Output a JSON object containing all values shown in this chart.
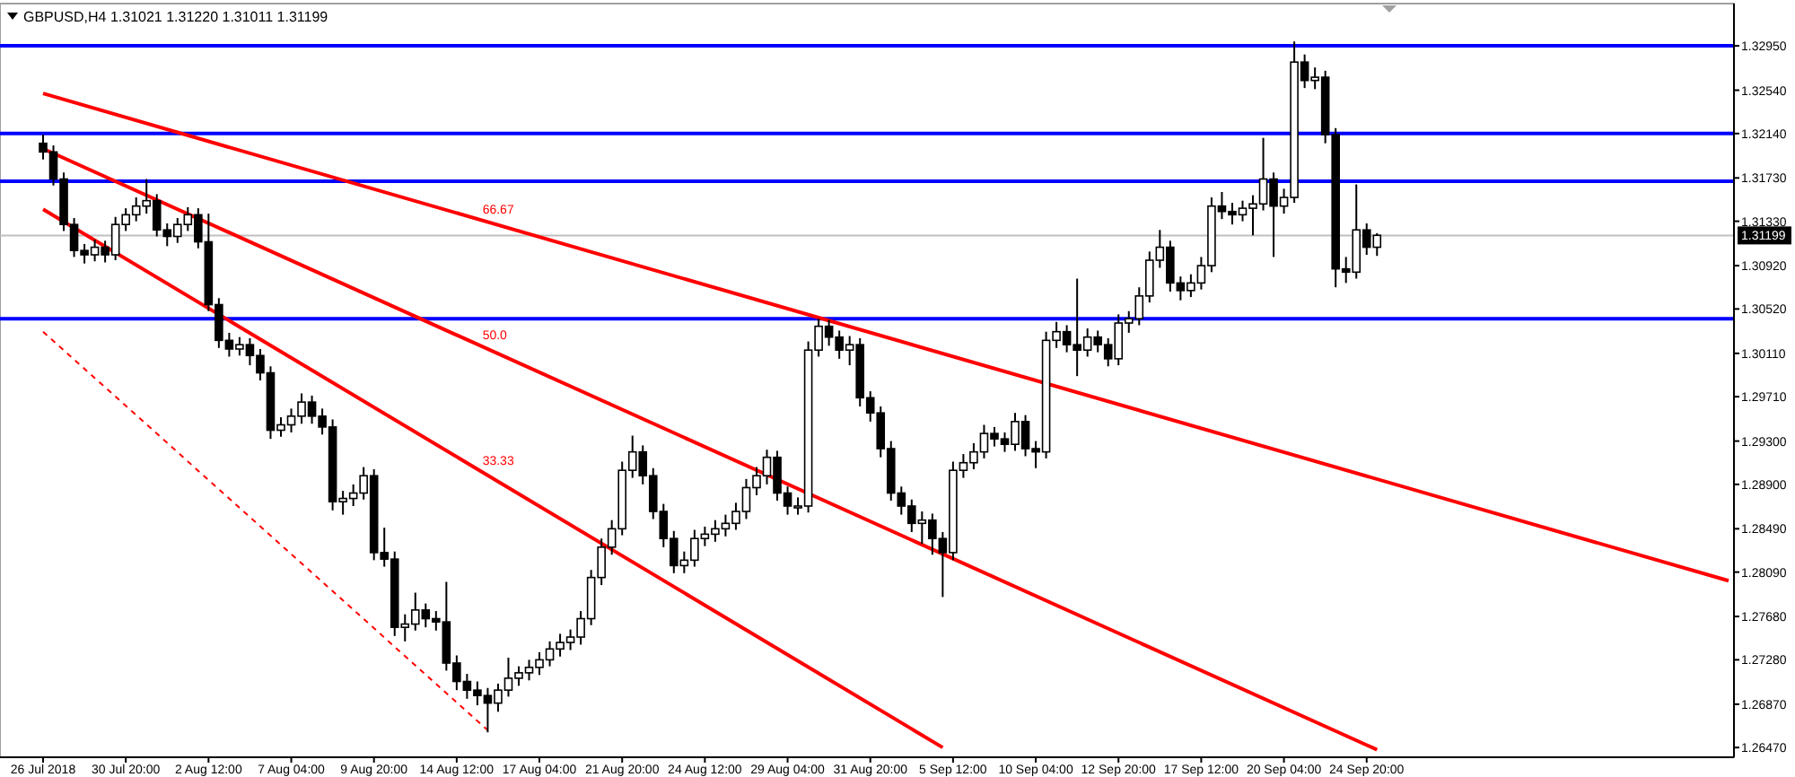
{
  "chart_data": {
    "type": "candlestick",
    "title": "GBPUSD,H4 1.31021 1.31220 1.31011 1.31199",
    "categories": [
      "26 Jul 2018",
      null,
      null,
      null,
      null,
      null,
      null,
      null,
      "30 Jul 20:00",
      null,
      null,
      null,
      null,
      null,
      null,
      null,
      "2 Aug 12:00",
      null,
      null,
      null,
      null,
      null,
      null,
      null,
      "7 Aug 04:00",
      null,
      null,
      null,
      null,
      null,
      null,
      null,
      "9 Aug 20:00",
      null,
      null,
      null,
      null,
      null,
      null,
      null,
      "14 Aug 12:00",
      null,
      null,
      null,
      null,
      null,
      null,
      null,
      "17 Aug 04:00",
      null,
      null,
      null,
      null,
      null,
      null,
      null,
      "21 Aug 20:00",
      null,
      null,
      null,
      null,
      null,
      null,
      null,
      "24 Aug 12:00",
      null,
      null,
      null,
      null,
      null,
      null,
      null,
      "29 Aug 04:00",
      null,
      null,
      null,
      null,
      null,
      null,
      null,
      "31 Aug 20:00",
      null,
      null,
      null,
      null,
      null,
      null,
      null,
      "5 Sep 12:00",
      null,
      null,
      null,
      null,
      null,
      null,
      null,
      "10 Sep 04:00",
      null,
      null,
      null,
      null,
      null,
      null,
      null,
      "12 Sep 20:00",
      null,
      null,
      null,
      null,
      null,
      null,
      null,
      "17 Sep 12:00",
      null,
      null,
      null,
      null,
      null,
      null,
      null,
      "20 Sep 04:00",
      null,
      null,
      null,
      null,
      null,
      null,
      null,
      "24 Sep 20:00",
      null,
      null,
      null,
      null,
      null,
      null,
      null,
      null,
      null,
      null,
      null,
      null,
      null,
      null,
      null,
      null,
      null,
      null,
      null,
      null,
      null,
      null,
      null,
      null,
      null,
      null,
      null,
      null,
      null,
      null,
      null,
      null,
      null,
      null,
      null
    ],
    "ohlc": [
      [
        1.3205,
        1.3213,
        1.319,
        1.3197
      ],
      [
        1.3197,
        1.3203,
        1.3166,
        1.3172
      ],
      [
        1.3172,
        1.3178,
        1.3124,
        1.313
      ],
      [
        1.313,
        1.3136,
        1.31,
        1.3106
      ],
      [
        1.3106,
        1.3112,
        1.3094,
        1.3102
      ],
      [
        1.3102,
        1.3116,
        1.3096,
        1.3109
      ],
      [
        1.3109,
        1.3115,
        1.3095,
        1.3102
      ],
      [
        1.3102,
        1.3137,
        1.3097,
        1.313
      ],
      [
        1.313,
        1.3145,
        1.3124,
        1.3139
      ],
      [
        1.3139,
        1.3155,
        1.3133,
        1.3147
      ],
      [
        1.3147,
        1.3172,
        1.314,
        1.3152
      ],
      [
        1.3152,
        1.3158,
        1.3119,
        1.3125
      ],
      [
        1.3125,
        1.3131,
        1.311,
        1.3119
      ],
      [
        1.3119,
        1.3136,
        1.3113,
        1.313
      ],
      [
        1.313,
        1.3146,
        1.3124,
        1.3139
      ],
      [
        1.3139,
        1.3145,
        1.3108,
        1.3114
      ],
      [
        1.3114,
        1.314,
        1.305,
        1.3056
      ],
      [
        1.3056,
        1.3062,
        1.3016,
        1.3023
      ],
      [
        1.3023,
        1.303,
        1.3008,
        1.3015
      ],
      [
        1.3015,
        1.3026,
        1.3009,
        1.3019
      ],
      [
        1.3019,
        1.3025,
        1.3,
        1.3009
      ],
      [
        1.3009,
        1.3015,
        1.2986,
        1.2993
      ],
      [
        1.2993,
        1.2999,
        1.2932,
        1.294
      ],
      [
        1.294,
        1.2952,
        1.2934,
        1.2945
      ],
      [
        1.2945,
        1.296,
        1.2938,
        1.2953
      ],
      [
        1.2953,
        1.2974,
        1.2946,
        1.2966
      ],
      [
        1.2966,
        1.2972,
        1.2946,
        1.2953
      ],
      [
        1.2953,
        1.296,
        1.2936,
        1.2943
      ],
      [
        1.2943,
        1.295,
        1.2866,
        1.2874
      ],
      [
        1.2874,
        1.2884,
        1.2862,
        1.2877
      ],
      [
        1.2877,
        1.289,
        1.287,
        1.2882
      ],
      [
        1.2882,
        1.2906,
        1.2876,
        1.2898
      ],
      [
        1.2898,
        1.2904,
        1.282,
        1.2827
      ],
      [
        1.2827,
        1.285,
        1.2814,
        1.2821
      ],
      [
        1.2821,
        1.2828,
        1.275,
        1.2758
      ],
      [
        1.2758,
        1.277,
        1.2745,
        1.2761
      ],
      [
        1.2761,
        1.279,
        1.2755,
        1.2774
      ],
      [
        1.2774,
        1.278,
        1.2758,
        1.2766
      ],
      [
        1.2766,
        1.2773,
        1.2755,
        1.2763
      ],
      [
        1.2763,
        1.28,
        1.2718,
        1.2725
      ],
      [
        1.2725,
        1.2732,
        1.27,
        1.2708
      ],
      [
        1.2708,
        1.2715,
        1.2692,
        1.27
      ],
      [
        1.27,
        1.2708,
        1.2686,
        1.2695
      ],
      [
        1.2695,
        1.2702,
        1.2661,
        1.2688
      ],
      [
        1.2688,
        1.2706,
        1.268,
        1.27
      ],
      [
        1.27,
        1.273,
        1.2694,
        1.2711
      ],
      [
        1.2711,
        1.2722,
        1.2704,
        1.2716
      ],
      [
        1.2716,
        1.2728,
        1.2709,
        1.2721
      ],
      [
        1.2721,
        1.2735,
        1.2714,
        1.2728
      ],
      [
        1.2728,
        1.2745,
        1.2722,
        1.2738
      ],
      [
        1.2738,
        1.2752,
        1.2731,
        1.2744
      ],
      [
        1.2744,
        1.2756,
        1.2737,
        1.2749
      ],
      [
        1.2749,
        1.2773,
        1.2742,
        1.2766
      ],
      [
        1.2766,
        1.2811,
        1.276,
        1.2804
      ],
      [
        1.2804,
        1.284,
        1.2797,
        1.2832
      ],
      [
        1.2832,
        1.2857,
        1.2825,
        1.2849
      ],
      [
        1.2849,
        1.2911,
        1.2843,
        1.2903
      ],
      [
        1.2903,
        1.2935,
        1.2896,
        1.292
      ],
      [
        1.292,
        1.2926,
        1.289,
        1.2898
      ],
      [
        1.2898,
        1.2905,
        1.2858,
        1.2865
      ],
      [
        1.2865,
        1.2872,
        1.2832,
        1.284
      ],
      [
        1.284,
        1.2847,
        1.2808,
        1.2815
      ],
      [
        1.2815,
        1.2828,
        1.2808,
        1.282
      ],
      [
        1.282,
        1.2848,
        1.2814,
        1.284
      ],
      [
        1.284,
        1.2851,
        1.2833,
        1.2844
      ],
      [
        1.2844,
        1.2857,
        1.2837,
        1.2849
      ],
      [
        1.2849,
        1.2862,
        1.2842,
        1.2854
      ],
      [
        1.2854,
        1.2873,
        1.2848,
        1.2865
      ],
      [
        1.2865,
        1.2895,
        1.2858,
        1.2887
      ],
      [
        1.2887,
        1.2906,
        1.288,
        1.2898
      ],
      [
        1.2898,
        1.2922,
        1.289,
        1.2915
      ],
      [
        1.2915,
        1.2921,
        1.2875,
        1.2882
      ],
      [
        1.2882,
        1.2888,
        1.2862,
        1.287
      ],
      [
        1.287,
        1.2878,
        1.2862,
        1.287
      ],
      [
        1.287,
        1.3022,
        1.2864,
        1.3014
      ],
      [
        1.3014,
        1.3043,
        1.3008,
        1.3036
      ],
      [
        1.3036,
        1.3042,
        1.3018,
        1.3026
      ],
      [
        1.3026,
        1.3032,
        1.3006,
        1.3014
      ],
      [
        1.3014,
        1.3027,
        1.3,
        1.3019
      ],
      [
        1.3019,
        1.3025,
        1.2962,
        1.297
      ],
      [
        1.297,
        1.2976,
        1.2948,
        1.2956
      ],
      [
        1.2956,
        1.2962,
        1.2915,
        1.2923
      ],
      [
        1.2923,
        1.293,
        1.2875,
        1.2882
      ],
      [
        1.2882,
        1.2888,
        1.2862,
        1.287
      ],
      [
        1.287,
        1.2876,
        1.2846,
        1.2854
      ],
      [
        1.2854,
        1.2865,
        1.2835,
        1.2857
      ],
      [
        1.2857,
        1.2863,
        1.2825,
        1.284
      ],
      [
        1.284,
        1.2846,
        1.2786,
        1.2827
      ],
      [
        1.2827,
        1.2911,
        1.282,
        1.2903
      ],
      [
        1.2903,
        1.2918,
        1.2896,
        1.291
      ],
      [
        1.291,
        1.2928,
        1.2904,
        1.292
      ],
      [
        1.292,
        1.2945,
        1.2914,
        1.2937
      ],
      [
        1.2937,
        1.2943,
        1.2925,
        1.2932
      ],
      [
        1.2932,
        1.2938,
        1.292,
        1.2927
      ],
      [
        1.2927,
        1.2956,
        1.2921,
        1.2948
      ],
      [
        1.2948,
        1.2954,
        1.2916,
        1.2923
      ],
      [
        1.2923,
        1.293,
        1.2905,
        1.292
      ],
      [
        1.292,
        1.3031,
        1.2914,
        1.3023
      ],
      [
        1.3023,
        1.304,
        1.3016,
        1.3031
      ],
      [
        1.3031,
        1.3037,
        1.3012,
        1.3019
      ],
      [
        1.3019,
        1.308,
        1.299,
        1.3014
      ],
      [
        1.3014,
        1.3034,
        1.3008,
        1.3026
      ],
      [
        1.3026,
        1.3032,
        1.3012,
        1.3019
      ],
      [
        1.3019,
        1.3025,
        1.2999,
        1.3006
      ],
      [
        1.3006,
        1.3047,
        1.3,
        1.3039
      ],
      [
        1.3039,
        1.305,
        1.303,
        1.3043
      ],
      [
        1.3043,
        1.3072,
        1.3037,
        1.3064
      ],
      [
        1.3064,
        1.3105,
        1.3058,
        1.3097
      ],
      [
        1.3097,
        1.3125,
        1.309,
        1.3109
      ],
      [
        1.3109,
        1.3115,
        1.3068,
        1.3076
      ],
      [
        1.3076,
        1.3082,
        1.306,
        1.3069
      ],
      [
        1.3069,
        1.3084,
        1.3063,
        1.3076
      ],
      [
        1.3076,
        1.31,
        1.307,
        1.3092
      ],
      [
        1.3092,
        1.3155,
        1.3086,
        1.3147
      ],
      [
        1.3147,
        1.316,
        1.3135,
        1.3142
      ],
      [
        1.3142,
        1.315,
        1.313,
        1.3139
      ],
      [
        1.3139,
        1.3152,
        1.3133,
        1.3145
      ],
      [
        1.3145,
        1.3157,
        1.312,
        1.3149
      ],
      [
        1.3149,
        1.321,
        1.3143,
        1.3172
      ],
      [
        1.3172,
        1.3178,
        1.31,
        1.3147
      ],
      [
        1.3147,
        1.3163,
        1.314,
        1.3155
      ],
      [
        1.3155,
        1.3299,
        1.315,
        1.328
      ],
      [
        1.328,
        1.3287,
        1.3256,
        1.3263
      ],
      [
        1.3263,
        1.3275,
        1.3255,
        1.3266
      ],
      [
        1.3266,
        1.3272,
        1.3205,
        1.3213
      ],
      [
        1.3213,
        1.3219,
        1.3072,
        1.3089
      ],
      [
        1.3089,
        1.31,
        1.3076,
        1.3086
      ],
      [
        1.3086,
        1.3167,
        1.308,
        1.3125
      ],
      [
        1.3125,
        1.3131,
        1.3102,
        1.3109
      ],
      [
        1.3109,
        1.3122,
        1.3101,
        1.312
      ],
      null,
      null,
      null,
      null,
      null,
      null,
      null,
      null,
      null,
      null,
      null,
      null,
      null,
      null,
      null,
      null,
      null,
      null,
      null,
      null,
      null,
      null,
      null,
      null,
      null,
      null,
      null,
      null,
      null,
      null,
      null,
      null,
      null,
      null
    ],
    "series": [
      {
        "type": "line",
        "color": "#ff0000",
        "line_style": "solid",
        "values": [
          1.3251,
          null,
          null,
          null,
          null,
          null,
          null,
          null,
          null,
          null,
          null,
          null,
          null,
          null,
          null,
          null,
          null,
          null,
          null,
          null,
          null,
          null,
          null,
          null,
          null,
          null,
          null,
          null,
          null,
          null,
          null,
          null,
          null,
          null,
          null,
          null,
          null,
          null,
          null,
          null,
          null,
          null,
          null,
          null,
          null,
          null,
          null,
          null,
          null,
          null,
          null,
          null,
          null,
          null,
          null,
          null,
          null,
          null,
          null,
          null,
          null,
          null,
          null,
          null,
          null,
          null,
          null,
          null,
          null,
          null,
          null,
          null,
          null,
          null,
          null,
          null,
          null,
          null,
          null,
          null,
          null,
          null,
          null,
          null,
          null,
          null,
          null,
          null,
          null,
          null,
          null,
          null,
          null,
          null,
          null,
          null,
          null,
          null,
          null,
          null,
          null,
          null,
          null,
          null,
          null,
          null,
          null,
          null,
          null,
          null,
          null,
          null,
          null,
          null,
          null,
          null,
          null,
          null,
          null,
          null,
          null,
          null,
          null,
          null,
          null,
          null,
          null,
          null,
          null,
          null,
          null,
          null,
          null,
          null,
          null,
          null,
          null,
          null,
          null,
          null,
          null,
          null,
          null,
          null,
          null,
          null,
          null,
          null,
          null,
          null,
          null,
          null,
          null,
          null,
          null,
          null,
          null,
          null,
          null,
          null,
          null,
          null,
          null,
          1.2801
        ]
      },
      {
        "type": "line",
        "color": "#ff0000",
        "line_style": "solid",
        "values": [
          1.32,
          null,
          null,
          null,
          null,
          null,
          null,
          null,
          null,
          null,
          null,
          null,
          null,
          null,
          null,
          null,
          null,
          null,
          null,
          null,
          null,
          null,
          null,
          null,
          null,
          null,
          null,
          null,
          null,
          null,
          null,
          null,
          null,
          null,
          null,
          null,
          null,
          null,
          null,
          null,
          null,
          null,
          null,
          null,
          null,
          null,
          null,
          null,
          null,
          null,
          null,
          null,
          null,
          null,
          null,
          null,
          null,
          null,
          null,
          null,
          null,
          null,
          null,
          null,
          null,
          null,
          null,
          null,
          null,
          null,
          null,
          null,
          null,
          null,
          null,
          null,
          null,
          null,
          null,
          null,
          null,
          null,
          null,
          null,
          null,
          null,
          null,
          null,
          null,
          null,
          null,
          null,
          null,
          null,
          null,
          null,
          null,
          null,
          null,
          null,
          null,
          null,
          null,
          null,
          null,
          null,
          null,
          null,
          null,
          null,
          null,
          null,
          null,
          null,
          null,
          null,
          null,
          null,
          null,
          null,
          null,
          null,
          null,
          null,
          null,
          null,
          null,
          null,
          null,
          1.2645,
          null,
          null,
          null,
          null,
          null,
          null,
          null,
          null,
          null,
          null,
          null,
          null,
          null,
          null,
          null,
          null,
          null,
          null,
          null,
          null,
          null,
          null,
          null,
          null,
          null,
          null,
          null,
          null,
          null,
          null,
          null,
          null,
          null,
          null
        ]
      },
      {
        "type": "line",
        "color": "#ff0000",
        "line_style": "solid",
        "values": [
          1.3144,
          null,
          null,
          null,
          null,
          null,
          null,
          null,
          null,
          null,
          null,
          null,
          null,
          null,
          null,
          null,
          null,
          null,
          null,
          null,
          null,
          null,
          null,
          null,
          null,
          null,
          null,
          null,
          null,
          null,
          null,
          null,
          null,
          null,
          null,
          null,
          null,
          null,
          null,
          null,
          null,
          null,
          null,
          null,
          null,
          null,
          null,
          null,
          null,
          null,
          null,
          null,
          null,
          null,
          null,
          null,
          null,
          null,
          null,
          null,
          null,
          null,
          null,
          null,
          null,
          null,
          null,
          null,
          null,
          null,
          null,
          null,
          null,
          null,
          null,
          null,
          null,
          null,
          null,
          null,
          null,
          null,
          null,
          null,
          null,
          null,
          null,
          1.2647,
          null,
          null,
          null,
          null,
          null,
          null,
          null,
          null,
          null,
          null,
          null,
          null,
          null,
          null,
          null,
          null,
          null,
          null,
          null,
          null,
          null,
          null,
          null,
          null,
          null,
          null,
          null,
          null,
          null,
          null,
          null,
          null,
          null,
          null,
          null,
          null,
          null,
          null,
          null,
          null,
          null,
          null,
          null,
          null,
          null,
          null,
          null,
          null,
          null,
          null,
          null,
          null,
          null,
          null,
          null,
          null,
          null,
          null,
          null,
          null,
          null,
          null,
          null,
          null,
          null,
          null,
          null,
          null,
          null,
          null,
          null,
          null,
          null,
          null,
          null,
          null
        ]
      },
      {
        "type": "line",
        "color": "#ff0000",
        "line_style": "dashed",
        "values": [
          1.3031,
          null,
          null,
          null,
          null,
          null,
          null,
          null,
          null,
          null,
          null,
          null,
          null,
          null,
          null,
          null,
          null,
          null,
          null,
          null,
          null,
          null,
          null,
          null,
          null,
          null,
          null,
          null,
          null,
          null,
          null,
          null,
          null,
          null,
          null,
          null,
          null,
          null,
          null,
          null,
          null,
          null,
          null,
          1.2663,
          null,
          null,
          null,
          null,
          null,
          null,
          null,
          null,
          null,
          null,
          null,
          null,
          null,
          null,
          null,
          null,
          null,
          null,
          null,
          null,
          null,
          null,
          null,
          null,
          null,
          null,
          null,
          null,
          null,
          null,
          null,
          null,
          null,
          null,
          null,
          null,
          null,
          null,
          null,
          null,
          null,
          null,
          null,
          null,
          null,
          null,
          null,
          null,
          null,
          null,
          null,
          null,
          null,
          null,
          null,
          null,
          null,
          null,
          null,
          null,
          null,
          null,
          null,
          null,
          null,
          null,
          null,
          null,
          null,
          null,
          null,
          null,
          null,
          null,
          null,
          null,
          null,
          null,
          null,
          null,
          null,
          null,
          null,
          null,
          null,
          null,
          null,
          null,
          null,
          null,
          null,
          null,
          null,
          null,
          null,
          null,
          null,
          null,
          null,
          null,
          null,
          null,
          null,
          null,
          null,
          null,
          null,
          null,
          null,
          null,
          null,
          null,
          null,
          null,
          null,
          null,
          null,
          null,
          null,
          null
        ]
      }
    ],
    "ylim": [
      1.2638,
      1.3334
    ],
    "yticks": [
      {
        "value": 1.3295,
        "label": "1.32950"
      },
      {
        "value": 1.3254,
        "label": "1.32540"
      },
      {
        "value": 1.3214,
        "label": "1.32140"
      },
      {
        "value": 1.3173,
        "label": "1.31730"
      },
      {
        "value": 1.3133,
        "label": "1.31330"
      },
      {
        "value": 1.3092,
        "label": "1.30920"
      },
      {
        "value": 1.3052,
        "label": "1.30520"
      },
      {
        "value": 1.3011,
        "label": "1.30110"
      },
      {
        "value": 1.2971,
        "label": "1.29710"
      },
      {
        "value": 1.293,
        "label": "1.29300"
      },
      {
        "value": 1.289,
        "label": "1.28900"
      },
      {
        "value": 1.2849,
        "label": "1.28490"
      },
      {
        "value": 1.2809,
        "label": "1.28090"
      },
      {
        "value": 1.2768,
        "label": "1.27680"
      },
      {
        "value": 1.2728,
        "label": "1.27280"
      },
      {
        "value": 1.2687,
        "label": "1.26870"
      },
      {
        "value": 1.2647,
        "label": "1.26470"
      }
    ],
    "ref_lines": [
      {
        "axis": "y",
        "value": 1.3295,
        "color": "#0000ff"
      },
      {
        "axis": "y",
        "value": 1.3214,
        "color": "#0000ff"
      },
      {
        "axis": "y",
        "value": 1.317,
        "color": "#0000ff"
      },
      {
        "axis": "y",
        "value": 1.3043,
        "color": "#0000ff"
      },
      {
        "axis": "y",
        "value": 1.31199,
        "label": "1.31199",
        "color": "#c0c0c0"
      }
    ],
    "annotations": [
      "66.67",
      "50.0",
      "33.33"
    ]
  }
}
